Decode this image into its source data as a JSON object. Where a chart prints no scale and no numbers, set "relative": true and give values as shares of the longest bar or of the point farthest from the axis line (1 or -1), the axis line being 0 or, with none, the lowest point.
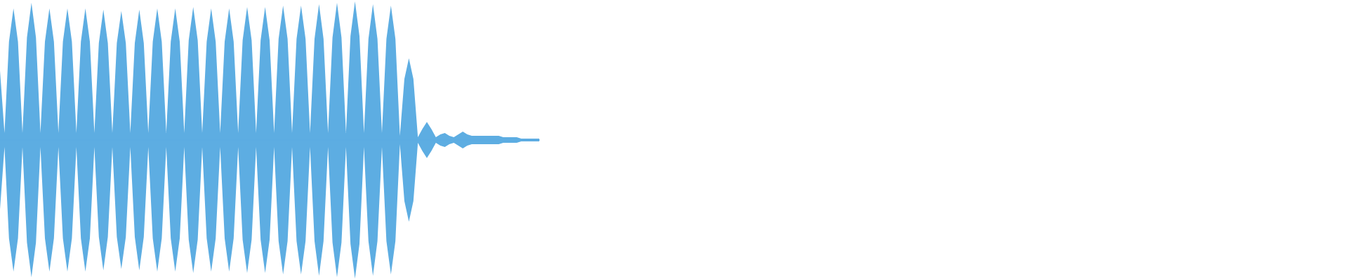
{
  "chart_data": {
    "type": "area",
    "relative": true,
    "categories": [
      null,
      null,
      null,
      null,
      null,
      null,
      null,
      null,
      null,
      null,
      null,
      null,
      null,
      null,
      null,
      null,
      null,
      null,
      null,
      null,
      null,
      null,
      null,
      null,
      null,
      null,
      null,
      null,
      null,
      null,
      null,
      null,
      null,
      null,
      null,
      null,
      null,
      null,
      null,
      null,
      null,
      null,
      null,
      null,
      null,
      null,
      null,
      null,
      null,
      null,
      null,
      null,
      null,
      null,
      null,
      null,
      null,
      null,
      null,
      null,
      null,
      null,
      null,
      null,
      null,
      null,
      null,
      null,
      null,
      null,
      null,
      null,
      null,
      null,
      null,
      null,
      null,
      null,
      null,
      null,
      null,
      null,
      null,
      null,
      null,
      null,
      null,
      null,
      null,
      null,
      null,
      null,
      null,
      null,
      null,
      null,
      null,
      null,
      null,
      null,
      null,
      null,
      null,
      null,
      null,
      null,
      null,
      null,
      null,
      null,
      null,
      null,
      null,
      null,
      null,
      null,
      null,
      null,
      null,
      null,
      null
    ],
    "series": [
      {
        "color": "#5dade2",
        "values": [
          0.5,
          0.05,
          0.71,
          0.95,
          0.71,
          0.05,
          0.74,
          0.99,
          0.74,
          0.05,
          0.71,
          0.95,
          0.71,
          0.05,
          0.71,
          0.95,
          0.71,
          0.05,
          0.71,
          0.95,
          0.71,
          0.05,
          0.7,
          0.94,
          0.7,
          0.05,
          0.7,
          0.93,
          0.7,
          0.05,
          0.7,
          0.94,
          0.7,
          0.05,
          0.71,
          0.95,
          0.71,
          0.05,
          0.71,
          0.95,
          0.71,
          0.05,
          0.72,
          0.96,
          0.72,
          0.05,
          0.71,
          0.95,
          0.71,
          0.05,
          0.71,
          0.95,
          0.71,
          0.05,
          0.72,
          0.96,
          0.72,
          0.05,
          0.72,
          0.96,
          0.72,
          0.05,
          0.73,
          0.97,
          0.73,
          0.05,
          0.73,
          0.97,
          0.73,
          0.05,
          0.73,
          0.98,
          0.73,
          0.05,
          0.74,
          0.99,
          0.74,
          0.05,
          0.75,
          1,
          0.75,
          0.05,
          0.73,
          0.98,
          0.73,
          0.05,
          0.73,
          0.97,
          0.73,
          0.03,
          0.44,
          0.59,
          0.44,
          0.02,
          0.08,
          0.13,
          0.08,
          0.02,
          0.04,
          0.05,
          0.03,
          0.02,
          0.04,
          0.06,
          0.04,
          0.03,
          0.03,
          0.03,
          0.03,
          0.03,
          0.03,
          0.03,
          0.02,
          0.02,
          0.02,
          0.02,
          0.01,
          0.01,
          0.01,
          0.01,
          0.01
        ]
      },
      {
        "color": "#5dade2",
        "values": [
          -0.5,
          -0.05,
          -0.71,
          -0.95,
          -0.71,
          -0.05,
          -0.74,
          -0.99,
          -0.74,
          -0.05,
          -0.71,
          -0.95,
          -0.71,
          -0.05,
          -0.71,
          -0.95,
          -0.71,
          -0.05,
          -0.71,
          -0.95,
          -0.71,
          -0.05,
          -0.7,
          -0.94,
          -0.7,
          -0.05,
          -0.7,
          -0.93,
          -0.7,
          -0.05,
          -0.7,
          -0.94,
          -0.7,
          -0.05,
          -0.71,
          -0.95,
          -0.71,
          -0.05,
          -0.71,
          -0.95,
          -0.71,
          -0.05,
          -0.72,
          -0.96,
          -0.72,
          -0.05,
          -0.71,
          -0.95,
          -0.71,
          -0.05,
          -0.71,
          -0.95,
          -0.71,
          -0.05,
          -0.72,
          -0.96,
          -0.72,
          -0.05,
          -0.72,
          -0.96,
          -0.72,
          -0.05,
          -0.73,
          -0.97,
          -0.73,
          -0.05,
          -0.73,
          -0.97,
          -0.73,
          -0.05,
          -0.73,
          -0.98,
          -0.73,
          -0.05,
          -0.74,
          -0.99,
          -0.74,
          -0.05,
          -0.75,
          -1,
          -0.75,
          -0.05,
          -0.73,
          -0.98,
          -0.73,
          -0.05,
          -0.73,
          -0.97,
          -0.73,
          -0.03,
          -0.44,
          -0.59,
          -0.44,
          -0.02,
          -0.08,
          -0.13,
          -0.08,
          -0.02,
          -0.04,
          -0.05,
          -0.03,
          -0.02,
          -0.04,
          -0.06,
          -0.04,
          -0.03,
          -0.03,
          -0.03,
          -0.03,
          -0.03,
          -0.03,
          -0.03,
          -0.02,
          -0.02,
          -0.02,
          -0.02,
          -0.01,
          -0.01,
          -0.01,
          -0.01,
          -0.01
        ]
      }
    ]
  }
}
